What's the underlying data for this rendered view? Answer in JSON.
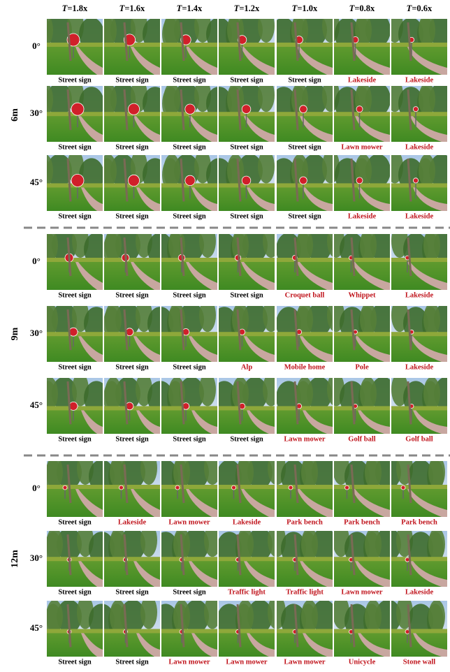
{
  "header": {
    "symbol": "T",
    "columns": [
      "=1.8x",
      "=1.6x",
      "=1.4x",
      "=1.2x",
      "=1.0x",
      "=0.8x",
      "=0.6x"
    ]
  },
  "groups": [
    {
      "label": "6m",
      "rows": [
        {
          "angle": "0°",
          "cells": [
            {
              "label": "Street sign",
              "color": "#000000"
            },
            {
              "label": "Street sign",
              "color": "#000000"
            },
            {
              "label": "Street sign",
              "color": "#000000"
            },
            {
              "label": "Street sign",
              "color": "#000000"
            },
            {
              "label": "Street sign",
              "color": "#000000"
            },
            {
              "label": "Lakeside",
              "color": "#c0141c"
            },
            {
              "label": "Lakeside",
              "color": "#c0141c"
            }
          ]
        },
        {
          "angle": "30°",
          "cells": [
            {
              "label": "Street sign",
              "color": "#000000"
            },
            {
              "label": "Street sign",
              "color": "#000000"
            },
            {
              "label": "Street sign",
              "color": "#000000"
            },
            {
              "label": "Street sign",
              "color": "#000000"
            },
            {
              "label": "Street sign",
              "color": "#000000"
            },
            {
              "label": "Lawn mower",
              "color": "#c0141c"
            },
            {
              "label": "Lakeside",
              "color": "#c0141c"
            }
          ]
        },
        {
          "angle": "45°",
          "cells": [
            {
              "label": "Street sign",
              "color": "#000000"
            },
            {
              "label": "Street sign",
              "color": "#000000"
            },
            {
              "label": "Street sign",
              "color": "#000000"
            },
            {
              "label": "Street sign",
              "color": "#000000"
            },
            {
              "label": "Street sign",
              "color": "#000000"
            },
            {
              "label": "Lakeside",
              "color": "#c0141c"
            },
            {
              "label": "Lakeside",
              "color": "#c0141c"
            }
          ]
        }
      ]
    },
    {
      "label": "9m",
      "rows": [
        {
          "angle": "0°",
          "cells": [
            {
              "label": "Street sign",
              "color": "#000000"
            },
            {
              "label": "Street sign",
              "color": "#000000"
            },
            {
              "label": "Street sign",
              "color": "#000000"
            },
            {
              "label": "Street sign",
              "color": "#000000"
            },
            {
              "label": "Croquet ball",
              "color": "#c0141c"
            },
            {
              "label": "Whippet",
              "color": "#c0141c"
            },
            {
              "label": "Lakeside",
              "color": "#c0141c"
            }
          ]
        },
        {
          "angle": "30°",
          "cells": [
            {
              "label": "Street sign",
              "color": "#000000"
            },
            {
              "label": "Street sign",
              "color": "#000000"
            },
            {
              "label": "Street sign",
              "color": "#000000"
            },
            {
              "label": "Alp",
              "color": "#c0141c"
            },
            {
              "label": "Mobile home",
              "color": "#c0141c"
            },
            {
              "label": "Pole",
              "color": "#c0141c"
            },
            {
              "label": "Lakeside",
              "color": "#c0141c"
            }
          ]
        },
        {
          "angle": "45°",
          "cells": [
            {
              "label": "Street sign",
              "color": "#000000"
            },
            {
              "label": "Street sign",
              "color": "#000000"
            },
            {
              "label": "Street sign",
              "color": "#000000"
            },
            {
              "label": "Street sign",
              "color": "#000000"
            },
            {
              "label": "Lawn mower",
              "color": "#c0141c"
            },
            {
              "label": "Golf ball",
              "color": "#c0141c"
            },
            {
              "label": "Golf ball",
              "color": "#c0141c"
            }
          ]
        }
      ]
    },
    {
      "label": "12m",
      "rows": [
        {
          "angle": "0°",
          "cells": [
            {
              "label": "Street sign",
              "color": "#000000"
            },
            {
              "label": "Lakeside",
              "color": "#c0141c"
            },
            {
              "label": "Lawn mower",
              "color": "#c0141c"
            },
            {
              "label": "Lakeside",
              "color": "#c0141c"
            },
            {
              "label": "Park bench",
              "color": "#c0141c"
            },
            {
              "label": "Park bench",
              "color": "#c0141c"
            },
            {
              "label": "Park bench",
              "color": "#c0141c"
            }
          ]
        },
        {
          "angle": "30°",
          "cells": [
            {
              "label": "Street sign",
              "color": "#000000"
            },
            {
              "label": "Street sign",
              "color": "#000000"
            },
            {
              "label": "Street sign",
              "color": "#000000"
            },
            {
              "label": "Traffic light",
              "color": "#c0141c"
            },
            {
              "label": "Traffic light",
              "color": "#c0141c"
            },
            {
              "label": "Lawn mower",
              "color": "#c0141c"
            },
            {
              "label": "Lakeside",
              "color": "#c0141c"
            }
          ]
        },
        {
          "angle": "45°",
          "cells": [
            {
              "label": "Street sign",
              "color": "#000000"
            },
            {
              "label": "Street sign",
              "color": "#000000"
            },
            {
              "label": "Lawn mower",
              "color": "#c0141c"
            },
            {
              "label": "Lawn mower",
              "color": "#c0141c"
            },
            {
              "label": "Lawn mower",
              "color": "#c0141c"
            },
            {
              "label": "Unicycle",
              "color": "#c0141c"
            },
            {
              "label": "Stone wall",
              "color": "#c0141c"
            }
          ]
        }
      ]
    }
  ]
}
